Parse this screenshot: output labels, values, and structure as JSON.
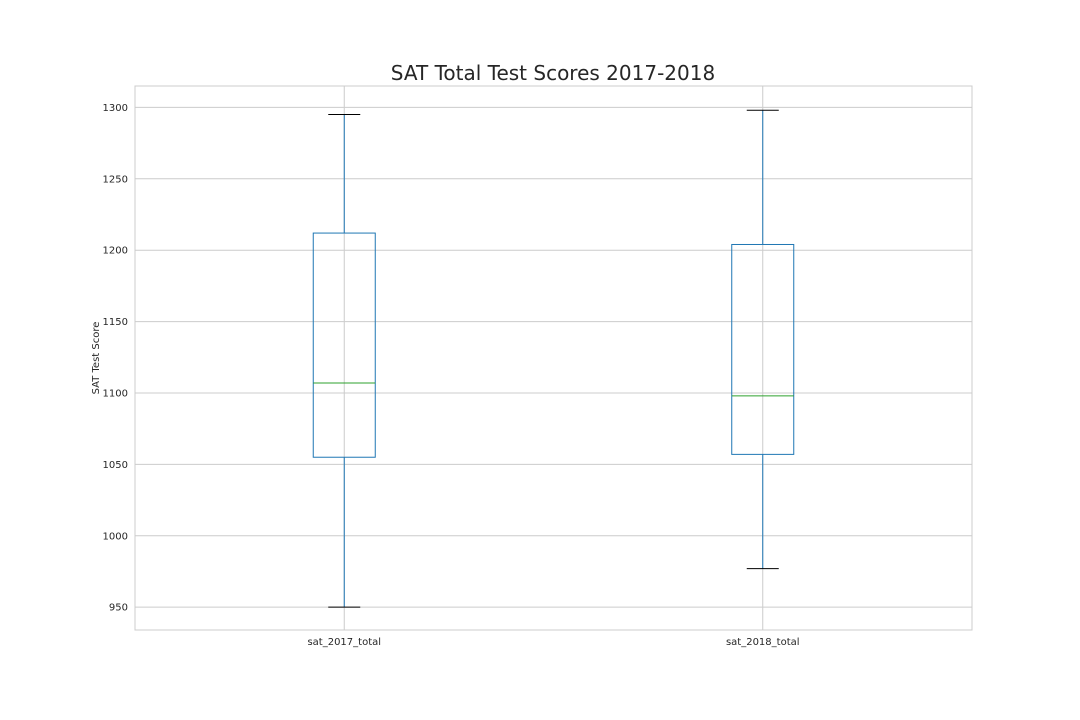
{
  "chart_data": {
    "type": "box",
    "title": "SAT Total Test Scores 2017-2018",
    "xlabel": "",
    "ylabel": "SAT Test Score",
    "ylim": [
      934,
      1315
    ],
    "yticks": [
      950,
      1000,
      1050,
      1100,
      1150,
      1200,
      1250,
      1300
    ],
    "grid": true,
    "categories": [
      "sat_2017_total",
      "sat_2018_total"
    ],
    "boxes": [
      {
        "category": "sat_2017_total",
        "whisker_low": 950,
        "q1": 1055,
        "median": 1107,
        "q3": 1212,
        "whisker_high": 1295
      },
      {
        "category": "sat_2018_total",
        "whisker_low": 977,
        "q1": 1057,
        "median": 1098,
        "q3": 1204,
        "whisker_high": 1298
      }
    ],
    "colors": {
      "box": "#1f77b4",
      "median": "#2ca02c",
      "whisker_cap": "#000000",
      "grid": "#cccccc",
      "frame": "#cccccc"
    }
  }
}
